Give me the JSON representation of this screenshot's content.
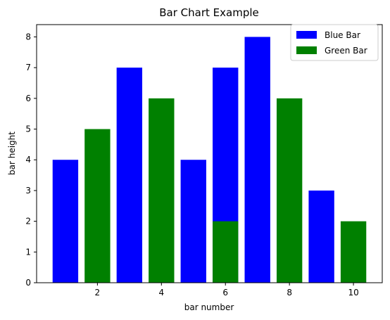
{
  "chart_data": {
    "type": "bar",
    "title": "Bar Chart Example",
    "xlabel": "bar number",
    "ylabel": "bar height",
    "xlim": [
      0.1,
      10.9
    ],
    "ylim": [
      0,
      8.4
    ],
    "xticks": [
      2,
      4,
      6,
      8,
      10
    ],
    "yticks": [
      0,
      1,
      2,
      3,
      4,
      5,
      6,
      7,
      8
    ],
    "bar_width": 0.8,
    "legend_position": "top-right",
    "series": [
      {
        "name": "Blue Bar",
        "color": "#0000ff",
        "x": [
          1,
          3,
          5,
          6,
          7,
          9
        ],
        "values": [
          4,
          7,
          4,
          7,
          8,
          3
        ]
      },
      {
        "name": "Green Bar",
        "color": "#008000",
        "x": [
          2,
          4,
          6,
          8,
          10
        ],
        "values": [
          5,
          6,
          2,
          6,
          2
        ]
      }
    ]
  }
}
